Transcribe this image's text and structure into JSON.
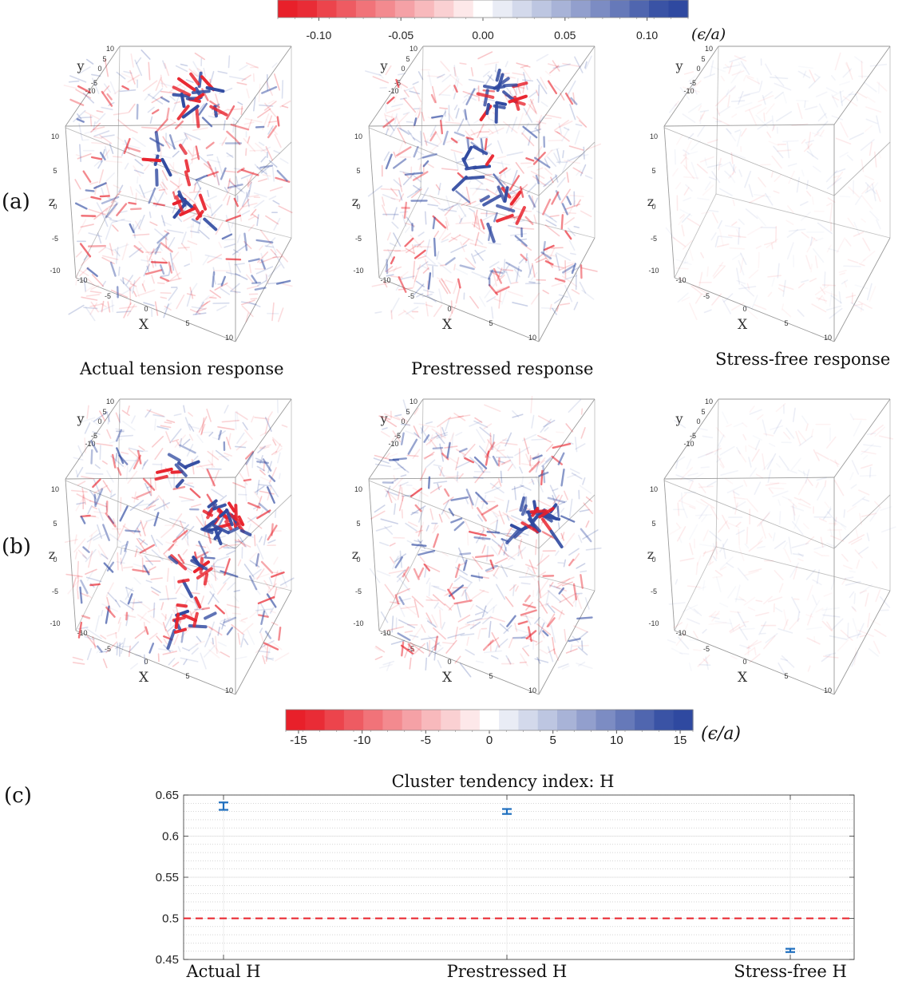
{
  "colorbar_top": {
    "ticks": [
      "-0.10",
      "-0.05",
      "0.00",
      "0.05",
      "0.10"
    ],
    "tick_values": [
      -0.1,
      -0.05,
      0.0,
      0.05,
      0.1
    ],
    "range": [
      -0.125,
      0.125
    ],
    "unit": "(ϵ/a)"
  },
  "colorbar_bottom": {
    "ticks": [
      "-15",
      "-10",
      "-5",
      "0",
      "5",
      "10",
      "15"
    ],
    "tick_values": [
      -15,
      -10,
      -5,
      0,
      5,
      10,
      15
    ],
    "range": [
      -16,
      16
    ],
    "unit": "(ϵ/a)"
  },
  "colors": {
    "negative": "#e8202a",
    "positive": "#2f49a0",
    "neutral": "#ffffff",
    "dashed": "#e8202a",
    "errorbar": "#1f6fbf"
  },
  "rows": [
    {
      "label": "(a)",
      "captions": [
        "Actual tension response",
        "Prestressed response",
        "Stress-free response"
      ]
    },
    {
      "label": "(b)",
      "captions": [
        "",
        "",
        ""
      ]
    }
  ],
  "cube_axes": {
    "x_label": "X",
    "y_label": "y",
    "z_label": "z",
    "x_ticks": [
      "-10",
      "-5",
      "0",
      "5",
      "10"
    ],
    "y_ticks": [
      "-10",
      "-5",
      "0",
      "5",
      "10"
    ],
    "z_ticks": [
      "10",
      "5",
      "0",
      "-5",
      "-10"
    ]
  },
  "panel_c_label": "(c)",
  "chart_data": {
    "type": "scatter",
    "title": "Cluster tendency index: H",
    "categories": [
      "Actual H",
      "Prestressed H",
      "Stress-free H"
    ],
    "values": [
      0.636,
      0.63,
      0.461
    ],
    "errors": [
      [
        0.632,
        0.641
      ],
      [
        0.627,
        0.633
      ],
      [
        0.459,
        0.463
      ]
    ],
    "reference_line": 0.5,
    "ylim": [
      0.45,
      0.65
    ],
    "yticks": [
      "0.45",
      "0.5",
      "0.55",
      "0.6",
      "0.65"
    ],
    "ytick_values": [
      0.45,
      0.5,
      0.55,
      0.6,
      0.65
    ],
    "grid": true,
    "minor_grid": true
  }
}
